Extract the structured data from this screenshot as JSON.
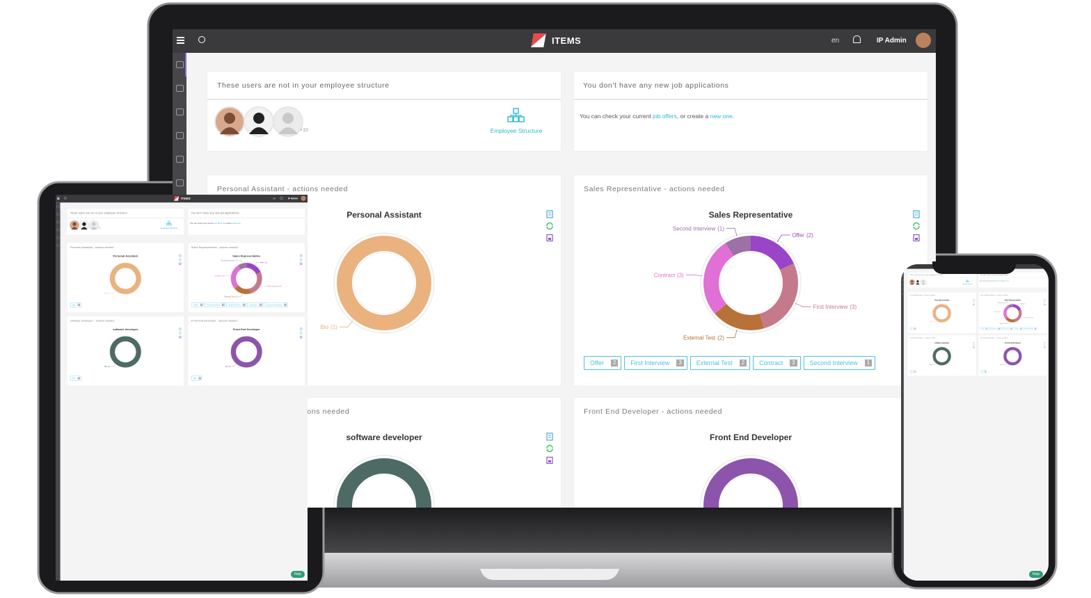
{
  "topbar": {
    "brand": "ITEMS",
    "language": "en",
    "user": "IP Admin"
  },
  "users_card": {
    "title": "These users are not in your employee structure",
    "more_count": "+10",
    "link": "Employee Structure"
  },
  "jobs_card": {
    "title": "You don't have any new job applications",
    "text": [
      "You can check your current ",
      "job offers",
      ", or create a ",
      "new one",
      "."
    ]
  },
  "charts": [
    {
      "type": "donut",
      "header": "Personal Assistant - actions needed",
      "title": "Personal Assistant",
      "segments": [
        {
          "label": "Bio",
          "value": 1,
          "value_label": "(1)",
          "color": "#e9b27f"
        }
      ]
    },
    {
      "type": "donut",
      "header": "Sales Representative - actions needed",
      "title": "Sales Representative",
      "segments": [
        {
          "label": "Offer",
          "value": 2,
          "value_label": "(2)",
          "color": "#9a44c8"
        },
        {
          "label": "First Interview",
          "value": 3,
          "value_label": "(3)",
          "color": "#c57a8b"
        },
        {
          "label": "External Test",
          "value": 2,
          "value_label": "(2)",
          "color": "#b87138"
        },
        {
          "label": "Contract",
          "value": 3,
          "value_label": "(3)",
          "color": "#e070d5"
        },
        {
          "label": "Second Interview",
          "value": 1,
          "value_label": "(1)",
          "color": "#9c72a6"
        }
      ]
    },
    {
      "type": "donut",
      "header": "software developer - actions needed",
      "title": "software developer",
      "segments": [
        {
          "label": "Bio",
          "value": 1,
          "value_label": "(1)",
          "color": "#4e6a64"
        }
      ]
    },
    {
      "type": "donut",
      "header": "Front End Developer - actions needed",
      "title": "Front End Developer",
      "segments": [
        {
          "label": "Bio",
          "value": 1,
          "value_label": "(1)",
          "color": "#8c55ab"
        }
      ]
    }
  ],
  "help": "Help"
}
